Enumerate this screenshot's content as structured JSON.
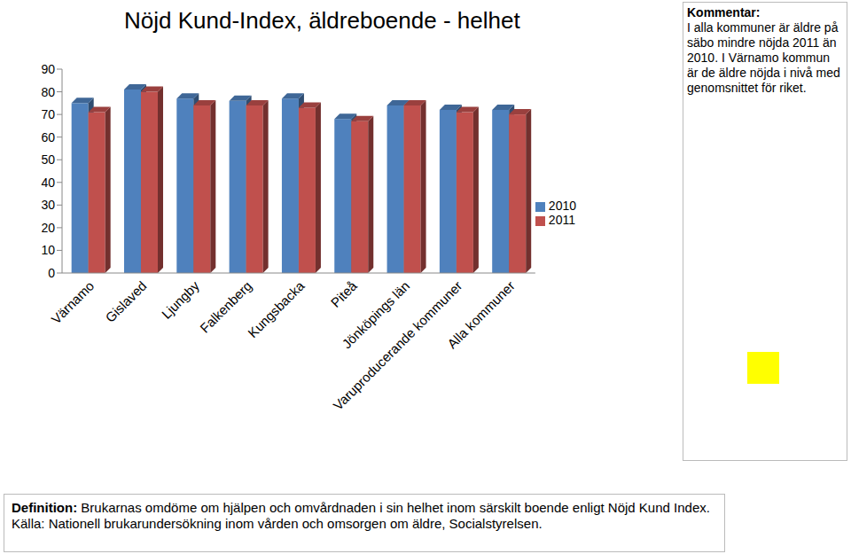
{
  "chart_data": {
    "type": "bar",
    "title": "Nöjd Kund-Index, äldreboende - helhet",
    "categories": [
      "Värnamo",
      "Gislaved",
      "Ljungby",
      "Falkenberg",
      "Kungsbacka",
      "Piteå",
      "Jönköpings län",
      "Varuproducerande kommuner",
      "Alla kommuner"
    ],
    "series": [
      {
        "name": "2010",
        "color": "#4f81bd",
        "values": [
          75,
          81,
          77,
          76,
          77,
          68,
          74,
          72,
          72
        ]
      },
      {
        "name": "2011",
        "color": "#c0504d",
        "values": [
          71,
          80,
          74,
          74,
          73,
          67,
          74,
          71,
          70
        ]
      }
    ],
    "ylim": [
      0,
      90
    ],
    "yticks": [
      0,
      10,
      20,
      30,
      40,
      50,
      60,
      70,
      80,
      90
    ],
    "grid": false,
    "legend": "right",
    "annotations": [
      {
        "label": "Kommentar:",
        "text": "I alla kommuner är äldre på säbo mindre nöjda 2011 än 2010. I Värnamo kommun är de äldre nöjda i nivå med genomsnittet för riket."
      },
      {
        "label": "Definition:",
        "text": "Brukarnas omdöme om hjälpen och omvårdnaden i sin helhet inom särskilt boende enligt Nöjd Kund Index. Källa: Nationell brukarundersökning inom vården och omsorgen om äldre, Socialstyrelsen."
      }
    ]
  }
}
